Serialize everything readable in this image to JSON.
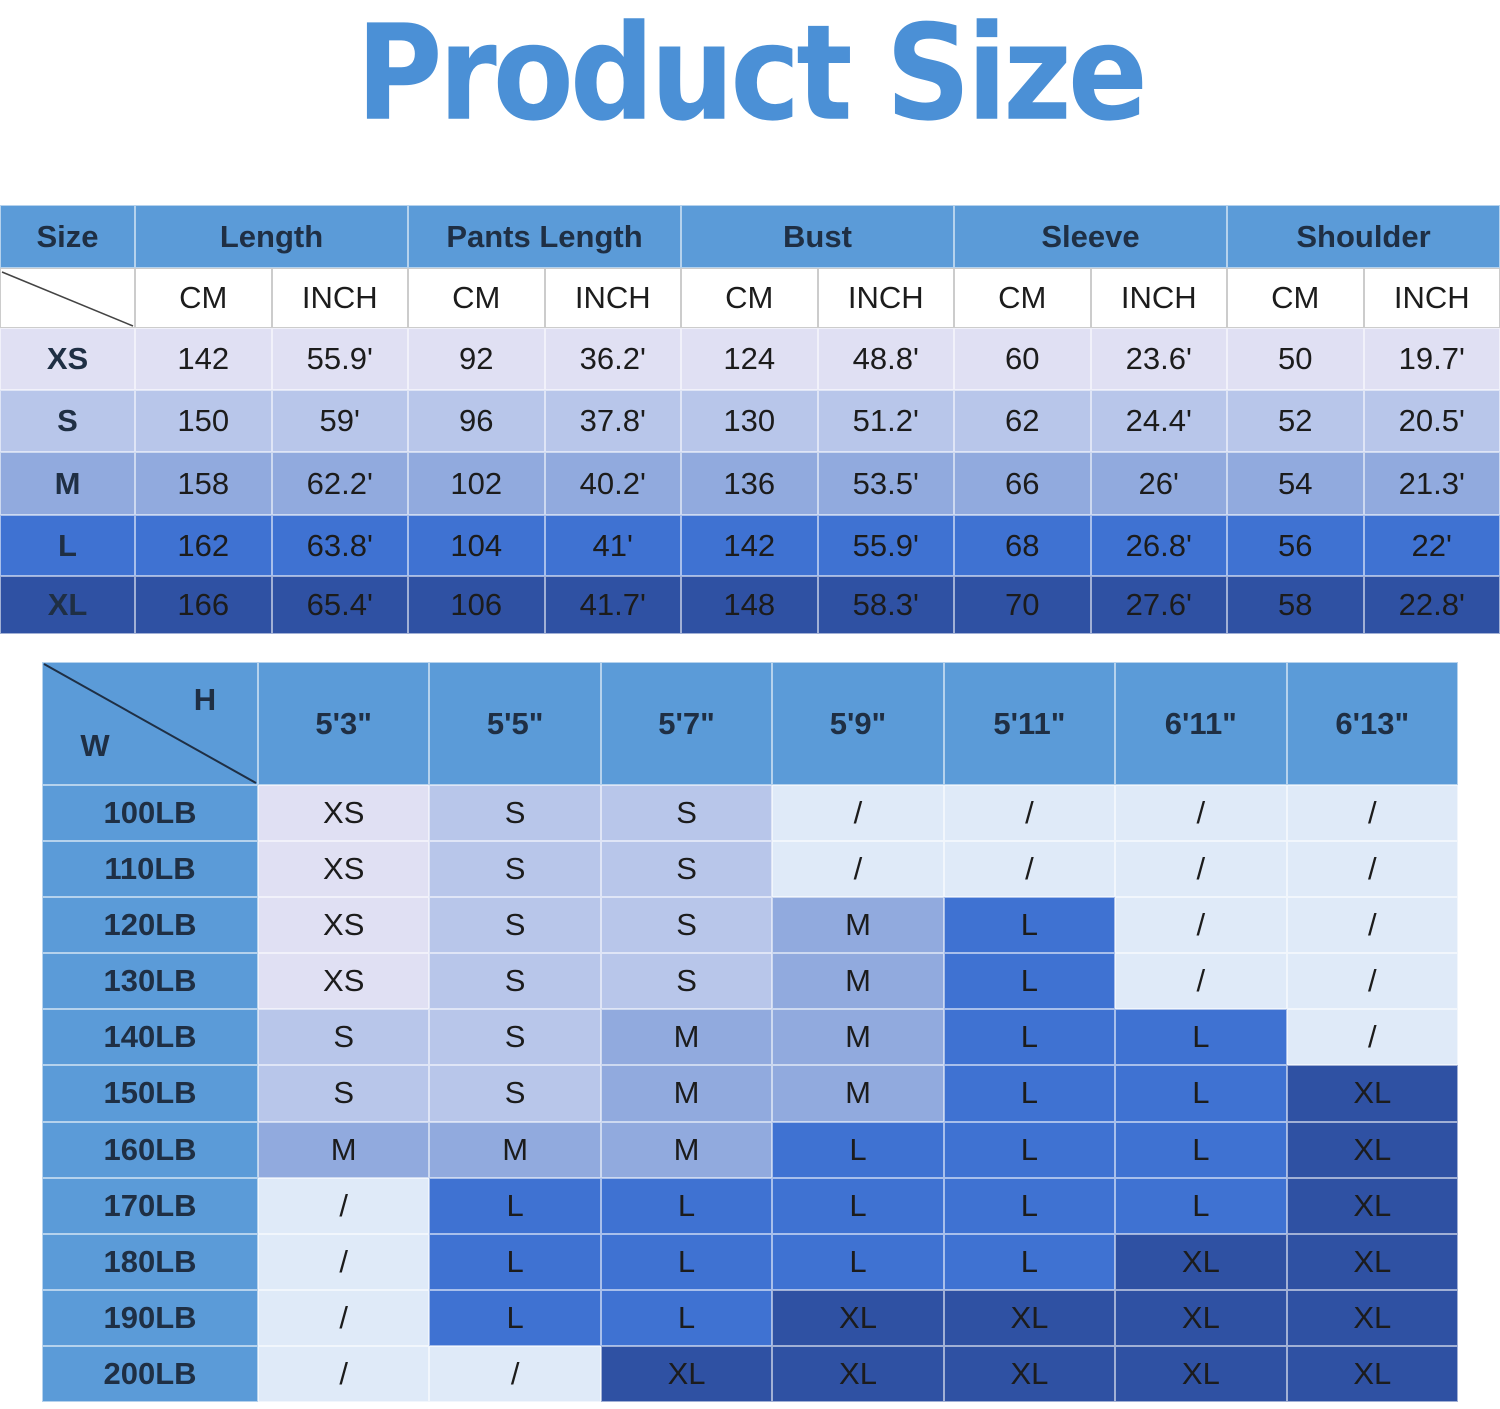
{
  "title": "Product Size",
  "size_table": {
    "headers": [
      "Size",
      "Length",
      "Pants Length",
      "Bust",
      "Sleeve",
      "Shoulder"
    ],
    "units": [
      "CM",
      "INCH",
      "CM",
      "INCH",
      "CM",
      "INCH",
      "CM",
      "INCH",
      "CM",
      "INCH"
    ],
    "rows": [
      [
        "XS",
        "142",
        "55.9'",
        "92",
        "36.2'",
        "124",
        "48.8'",
        "60",
        "23.6'",
        "50",
        "19.7'"
      ],
      [
        "S",
        "150",
        "59'",
        "96",
        "37.8'",
        "130",
        "51.2'",
        "62",
        "24.4'",
        "52",
        "20.5'"
      ],
      [
        "M",
        "158",
        "62.2'",
        "102",
        "40.2'",
        "136",
        "53.5'",
        "66",
        "26'",
        "54",
        "21.3'"
      ],
      [
        "L",
        "162",
        "63.8'",
        "104",
        "41'",
        "142",
        "55.9'",
        "68",
        "26.8'",
        "56",
        "22'"
      ],
      [
        "XL",
        "166",
        "65.4'",
        "106",
        "41.7'",
        "148",
        "58.3'",
        "70",
        "27.6'",
        "58",
        "22.8'"
      ]
    ]
  },
  "fit_table": {
    "h_label": "H",
    "w_label": "W",
    "heights": [
      "5'3\"",
      "5'5\"",
      "5'7\"",
      "5'9\"",
      "5'11\"",
      "6'11\"",
      "6'13\""
    ],
    "rows": [
      [
        "100LB",
        "XS",
        "S",
        "S",
        "/",
        "/",
        "/",
        "/"
      ],
      [
        "110LB",
        "XS",
        "S",
        "S",
        "/",
        "/",
        "/",
        "/"
      ],
      [
        "120LB",
        "XS",
        "S",
        "S",
        "M",
        "L",
        "/",
        "/"
      ],
      [
        "130LB",
        "XS",
        "S",
        "S",
        "M",
        "L",
        "/",
        "/"
      ],
      [
        "140LB",
        "S",
        "S",
        "M",
        "M",
        "L",
        "L",
        "/"
      ],
      [
        "150LB",
        "S",
        "S",
        "M",
        "M",
        "L",
        "L",
        "XL"
      ],
      [
        "160LB",
        "M",
        "M",
        "M",
        "L",
        "L",
        "L",
        "XL"
      ],
      [
        "170LB",
        "/",
        "L",
        "L",
        "L",
        "L",
        "L",
        "XL"
      ],
      [
        "180LB",
        "/",
        "L",
        "L",
        "L",
        "L",
        "XL",
        "XL"
      ],
      [
        "190LB",
        "/",
        "L",
        "L",
        "XL",
        "XL",
        "XL",
        "XL"
      ],
      [
        "200LB",
        "/",
        "/",
        "XL",
        "XL",
        "XL",
        "XL",
        "XL"
      ]
    ]
  }
}
